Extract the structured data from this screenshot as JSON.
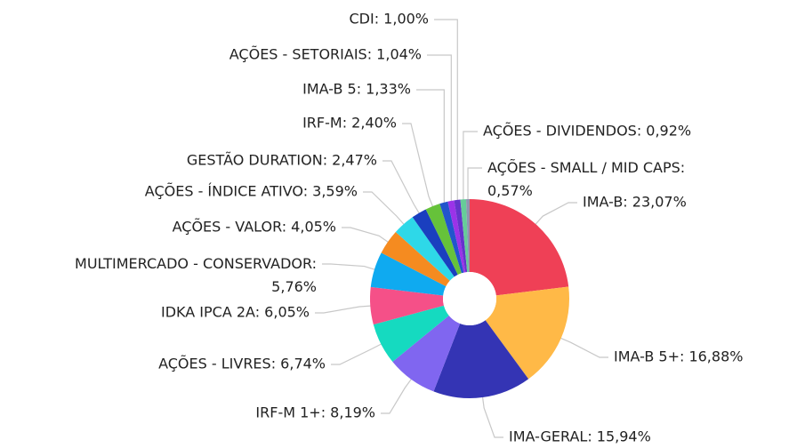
{
  "chart_data": {
    "type": "pie",
    "values": [
      23.07,
      16.88,
      15.94,
      8.19,
      6.74,
      6.05,
      5.76,
      4.05,
      3.59,
      2.47,
      2.4,
      1.33,
      1.04,
      1.0,
      0.92,
      0.57
    ],
    "value_labels": [
      "IMA-B: 23,07%",
      "IMA-B 5+: 16,88%",
      "IMA-GERAL: 15,94%",
      "IRF-M 1+: 8,19%",
      "AÇÕES - LIVRES: 6,74%",
      "IDKA IPCA 2A: 6,05%",
      "MULTIMERCADO - CONSERVADOR: 5,76%",
      "AÇÕES - VALOR: 4,05%",
      "AÇÕES - ÍNDICE ATIVO: 3,59%",
      "GESTÃO DURATION: 2,47%",
      "IRF-M: 2,40%",
      "IMA-B 5: 1,33%",
      "AÇÕES - SETORIAIS: 1,04%",
      "CDI: 1,00%",
      "AÇÕES - DIVIDENDOS: 0,92%",
      "AÇÕES - SMALL / MID CAPS: 0,57%"
    ],
    "colors": [
      "#ef4056",
      "#ffb947",
      "#3434b4",
      "#8066f0",
      "#15dac0",
      "#f55088",
      "#0faaf0",
      "#f58b20",
      "#2ed8e8",
      "#1a3fbf",
      "#66c23a",
      "#2255cc",
      "#9b33e8",
      "#6633cc",
      "#66cc99",
      "#8f94b0"
    ],
    "donut": true
  }
}
